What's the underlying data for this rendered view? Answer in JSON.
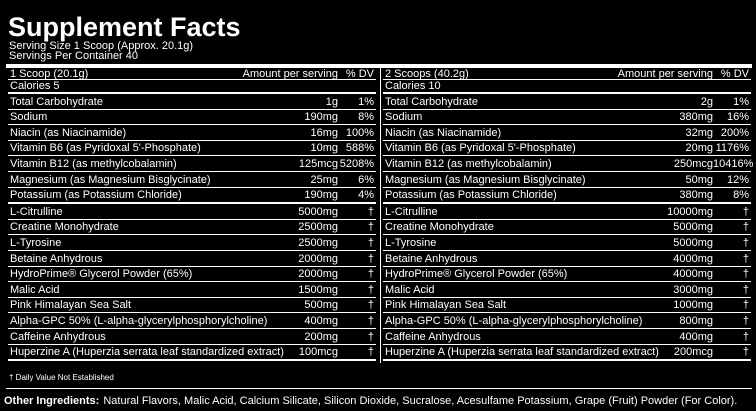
{
  "title": "Supplement Facts",
  "serving_size": "Serving Size 1 Scoop (Approx. 20.1g)",
  "servings_per_container": "Servings Per Container 40",
  "columns": [
    {
      "serving": "1 Scoop (20.1g)",
      "amount_header": "Amount per serving",
      "dv_header": "% DV",
      "calories": "Calories 5",
      "nutrients": [
        [
          "Total Carbohydrate",
          "1g",
          "1%"
        ],
        [
          "Sodium",
          "190mg",
          "8%"
        ],
        [
          "Niacin (as Niacinamide)",
          "16mg",
          "100%"
        ],
        [
          "Vitamin B6 (as Pyridoxal 5'-Phosphate)",
          "10mg",
          "588%"
        ],
        [
          "Vitamin B12 (as methylcobalamin)",
          "125mcg",
          "5208%"
        ],
        [
          "Magnesium (as Magnesium Bisglycinate)",
          "25mg",
          "6%"
        ],
        [
          "Potassium (as Potassium Chloride)",
          "190mg",
          "4%"
        ]
      ],
      "ingredients": [
        [
          "L-Citrulline",
          "5000mg",
          "†"
        ],
        [
          "Creatine Monohydrate",
          "2500mg",
          "†"
        ],
        [
          "L-Tyrosine",
          "2500mg",
          "†"
        ],
        [
          "Betaine Anhydrous",
          "2000mg",
          "†"
        ],
        [
          "HydroPrime® Glycerol Powder (65%)",
          "2000mg",
          "†"
        ],
        [
          "Malic Acid",
          "1500mg",
          "†"
        ],
        [
          "Pink Himalayan Sea Salt",
          "500mg",
          "†"
        ],
        [
          "Alpha-GPC 50% (L-alpha-glycerylphosphorylcholine)",
          "400mg",
          "†"
        ],
        [
          "Caffeine Anhydrous",
          "200mg",
          "†"
        ],
        [
          "Huperzine A (Huperzia serrata leaf standardized extract)",
          "100mcg",
          "†"
        ]
      ]
    },
    {
      "serving": "2 Scoops (40.2g)",
      "amount_header": "Amount per serving",
      "dv_header": "% DV",
      "calories": "Calories 10",
      "nutrients": [
        [
          "Total Carbohydrate",
          "2g",
          "1%"
        ],
        [
          "Sodium",
          "380mg",
          "16%"
        ],
        [
          "Niacin (as Niacinamide)",
          "32mg",
          "200%"
        ],
        [
          "Vitamin B6 (as Pyridoxal 5'-Phosphate)",
          "20mg",
          "1176%"
        ],
        [
          "Vitamin B12 (as methylcobalamin)",
          "250mcg",
          "10416%"
        ],
        [
          "Magnesium (as Magnesium Bisglycinate)",
          "50mg",
          "12%"
        ],
        [
          "Potassium (as Potassium Chloride)",
          "380mg",
          "8%"
        ]
      ],
      "ingredients": [
        [
          "L-Citrulline",
          "10000mg",
          "†"
        ],
        [
          "Creatine Monohydrate",
          "5000mg",
          "†"
        ],
        [
          "L-Tyrosine",
          "5000mg",
          "†"
        ],
        [
          "Betaine Anhydrous",
          "4000mg",
          "†"
        ],
        [
          "HydroPrime® Glycerol Powder (65%)",
          "4000mg",
          "†"
        ],
        [
          "Malic Acid",
          "3000mg",
          "†"
        ],
        [
          "Pink Himalayan Sea Salt",
          "1000mg",
          "†"
        ],
        [
          "Alpha-GPC 50% (L-alpha-glycerylphosphorylcholine)",
          "800mg",
          "†"
        ],
        [
          "Caffeine Anhydrous",
          "400mg",
          "†"
        ],
        [
          "Huperzine A (Huperzia serrata leaf standardized extract)",
          "200mcg",
          "†"
        ]
      ]
    }
  ],
  "footnote": "† Daily Value Not Established",
  "other_ingredients": {
    "label": "Other Ingredients:",
    "text": "Natural Flavors, Malic Acid, Calcium Silicate, Silicon Dioxide, Sucralose, Acesulfame Potassium, Grape (Fruit) Powder (For Color)."
  }
}
